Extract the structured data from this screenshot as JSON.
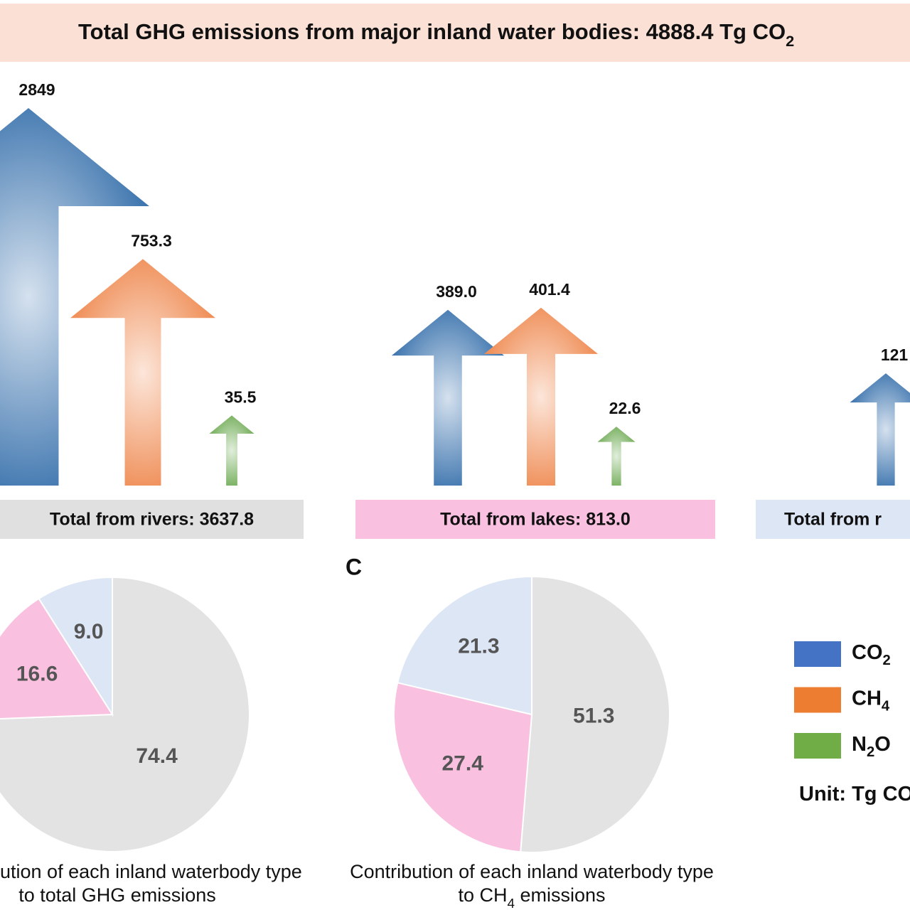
{
  "title": [
    "Total GHG emissions from major inland water bodies: 4888.4 Tg CO",
    "2"
  ],
  "chart_data": [
    {
      "type": "arrow",
      "categories": [
        "Total from rivers: 3637.8",
        "Total from lakes: 813.0",
        "Total from r"
      ],
      "category_colors": [
        "#e0e0e0",
        "#f9c0e0",
        "#dde6f5"
      ],
      "series": [
        {
          "color": "#2e6aa8",
          "values": [
            2849,
            389.0,
            121
          ],
          "value_labels": [
            "2849",
            "389.0",
            "121"
          ]
        },
        {
          "color": "#ee8448",
          "values": [
            753.3,
            401.4,
            null
          ]
        },
        {
          "color": "#6aa84f",
          "values": [
            35.5,
            22.6,
            null
          ]
        }
      ],
      "legend": [
        {
          "label": [
            "CO",
            "2"
          ],
          "color": "#4472c4"
        },
        {
          "label": [
            "CH",
            "4"
          ],
          "color": "#ed7d31"
        },
        {
          "label": [
            "N",
            "2",
            "O"
          ],
          "color": "#70ad47"
        }
      ],
      "unit": [
        "Unit: Tg CO"
      ]
    },
    {
      "type": "pie",
      "values": [
        74.4,
        16.6,
        9.0
      ],
      "value_labels": [
        "74.4",
        "16.6",
        "9.0"
      ],
      "colors": [
        "#e3e3e3",
        "#f9c0e0",
        "#dde6f5"
      ],
      "caption": [
        [
          "ution of each inland waterbody type"
        ],
        [
          "to total GHG emissions"
        ]
      ]
    },
    {
      "type": "pie",
      "label": "C",
      "values": [
        51.3,
        27.4,
        21.3
      ],
      "colors": [
        "#e3e3e3",
        "#f9c0e0",
        "#dde6f5"
      ],
      "caption": [
        [
          "Contribution of each inland waterbody type"
        ],
        [
          "to CH",
          "4",
          " emissions"
        ]
      ]
    }
  ]
}
